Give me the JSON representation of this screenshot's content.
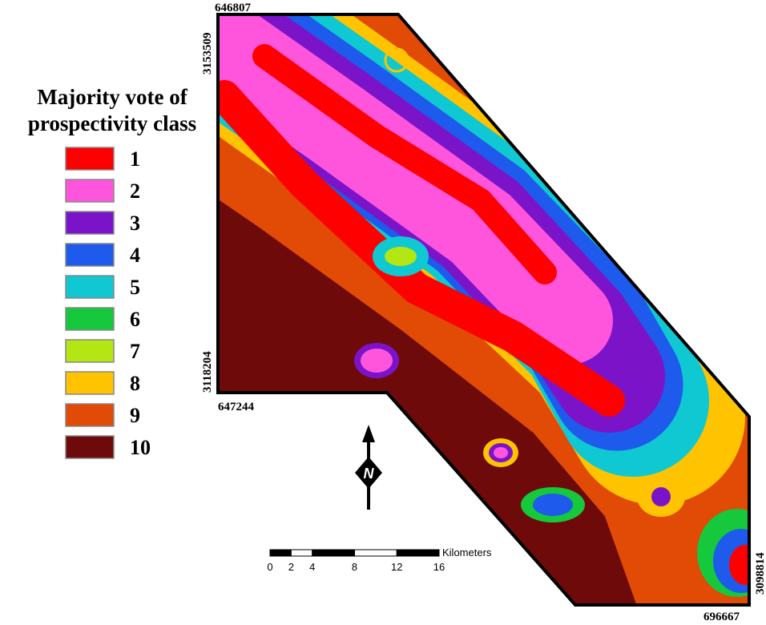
{
  "legend": {
    "title_lines": [
      "Majority vote of",
      "prospectivity class"
    ],
    "items": [
      {
        "label": "1",
        "color": "#ff0000"
      },
      {
        "label": "2",
        "color": "#ff55dd"
      },
      {
        "label": "3",
        "color": "#7b14c8"
      },
      {
        "label": "4",
        "color": "#1e5aeb"
      },
      {
        "label": "5",
        "color": "#0fc8d2"
      },
      {
        "label": "6",
        "color": "#16c83c"
      },
      {
        "label": "7",
        "color": "#b4e614"
      },
      {
        "label": "8",
        "color": "#ffc300"
      },
      {
        "label": "9",
        "color": "#e14b05"
      },
      {
        "label": "10",
        "color": "#6e0a0a"
      }
    ]
  },
  "coordinates": {
    "top_x": 646807,
    "top_y": 3153509,
    "mid_y": 3118204,
    "mid_x": 647244,
    "bottom_y": 3098814,
    "bottom_x": 696667
  },
  "north_arrow": {
    "label": "N"
  },
  "scale_bar": {
    "ticks": [
      0,
      2,
      4,
      8,
      12,
      16
    ],
    "unit": "Kilometers"
  }
}
